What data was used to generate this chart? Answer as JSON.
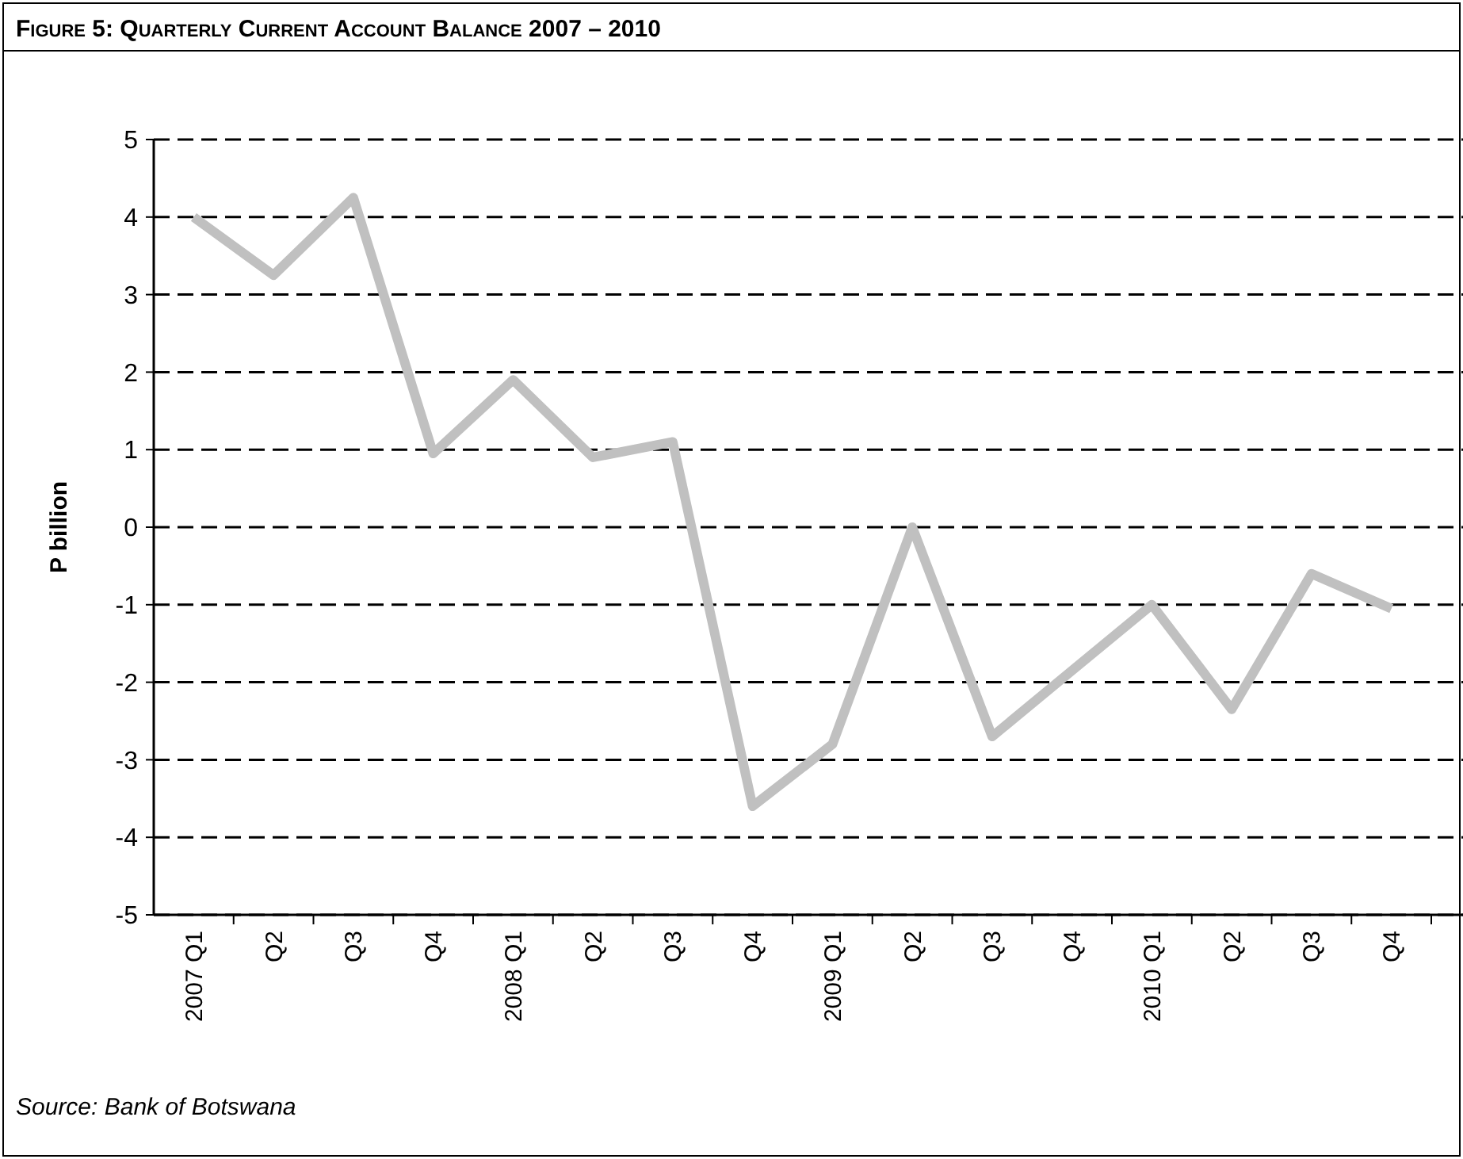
{
  "chart_data": {
    "type": "line",
    "title": "Figure 5: Quarterly Current Account Balance 2007 – 2010",
    "ylabel": "P billion",
    "categories": [
      "2007 Q1",
      "Q2",
      "Q3",
      "Q4",
      "2008 Q1",
      "Q2",
      "Q3",
      "Q4",
      "2009 Q1",
      "Q2",
      "Q3",
      "Q4",
      "2010 Q1",
      "Q2",
      "Q3",
      "Q4"
    ],
    "series": [
      {
        "color": "#c0c0c0",
        "values": [
          4.0,
          3.25,
          4.25,
          0.95,
          1.9,
          0.9,
          1.1,
          -3.6,
          -2.8,
          0.0,
          -2.7,
          -1.85,
          -1.0,
          -2.35,
          -0.6,
          -1.05
        ]
      }
    ],
    "ylim": [
      -5,
      5
    ],
    "yticks": [
      -5,
      -4,
      -3,
      -2,
      -1,
      0,
      1,
      2,
      3,
      4,
      5
    ],
    "grid": "y",
    "marker": "none",
    "line_style": "solid",
    "annotations": [
      "Source: Bank of Botswana"
    ]
  }
}
